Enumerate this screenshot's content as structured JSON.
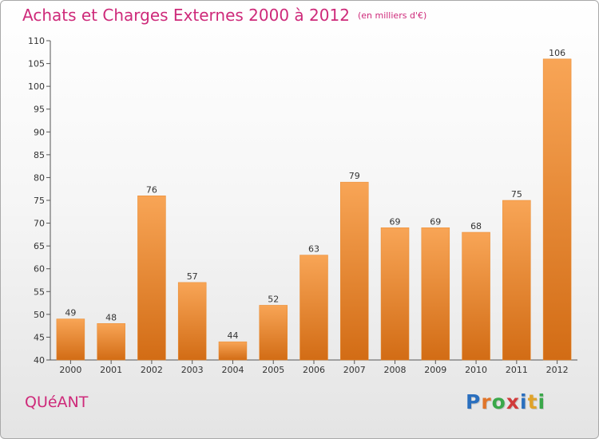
{
  "title": "Achats et Charges Externes 2000 à 2012",
  "unit": "(en milliers d'€)",
  "commune": "QUéANT",
  "logo": {
    "letters": [
      "P",
      "r",
      "o",
      "x",
      "i",
      "t",
      "i"
    ],
    "colors": [
      "#2a6fbe",
      "#e0752a",
      "#3aa84a",
      "#d03a3a",
      "#2a6fbe",
      "#e0a32a",
      "#3aa84a"
    ]
  },
  "colors": {
    "title": "#ce2a7a",
    "bar_top": "#f8a556",
    "bar_bottom": "#d26c15"
  },
  "chart_data": {
    "type": "bar",
    "title": "Achats et Charges Externes 2000 à 2012",
    "categories": [
      "2000",
      "2001",
      "2002",
      "2003",
      "2004",
      "2005",
      "2006",
      "2007",
      "2008",
      "2009",
      "2010",
      "2011",
      "2012"
    ],
    "values": [
      49,
      48,
      76,
      57,
      44,
      52,
      63,
      79,
      69,
      69,
      68,
      75,
      106
    ],
    "ylim": [
      40,
      110
    ],
    "yticks": [
      40,
      45,
      50,
      55,
      60,
      65,
      70,
      75,
      80,
      85,
      90,
      95,
      100,
      105,
      110
    ],
    "grid": false,
    "legend": "none"
  }
}
